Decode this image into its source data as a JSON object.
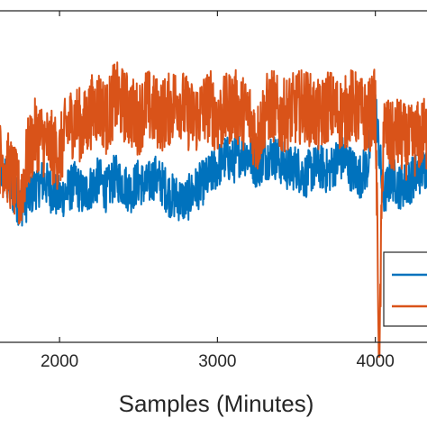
{
  "chart_data": {
    "type": "line",
    "xlabel": "Samples (Minutes)",
    "ylabel": "",
    "xlim": [
      1600,
      4350
    ],
    "ylim": [
      -1.1,
      1.2
    ],
    "xticks": [
      2000,
      3000,
      4000
    ],
    "xtick_labels": [
      "2000",
      "3000",
      "4000"
    ],
    "grid": false,
    "legend_placement": "bottom-right",
    "series": [
      {
        "color": "#0072BD",
        "x": [
          1600,
          1650,
          1700,
          1750,
          1800,
          1850,
          1900,
          1950,
          2000,
          2050,
          2100,
          2150,
          2200,
          2250,
          2300,
          2350,
          2400,
          2450,
          2500,
          2550,
          2600,
          2650,
          2700,
          2750,
          2800,
          2850,
          2900,
          2950,
          3000,
          3050,
          3100,
          3150,
          3200,
          3250,
          3300,
          3350,
          3400,
          3450,
          3500,
          3550,
          3600,
          3650,
          3700,
          3750,
          3800,
          3850,
          3900,
          3950,
          4000,
          4050,
          4100,
          4150,
          4200,
          4250,
          4300,
          4350
        ],
        "values": [
          0.15,
          0.05,
          -0.05,
          -0.15,
          -0.1,
          -0.02,
          0.02,
          -0.05,
          -0.1,
          -0.05,
          0.0,
          -0.08,
          -0.02,
          0.03,
          -0.05,
          0.05,
          0.0,
          -0.05,
          0.02,
          -0.02,
          0.05,
          0.0,
          -0.08,
          -0.1,
          -0.12,
          -0.05,
          0.0,
          0.05,
          0.12,
          0.18,
          0.15,
          0.22,
          0.2,
          0.12,
          0.18,
          0.2,
          0.15,
          0.1,
          0.12,
          0.05,
          0.1,
          0.12,
          0.08,
          0.15,
          0.18,
          0.1,
          0.05,
          0.12,
          0.55,
          -0.1,
          0.05,
          -0.02,
          0.0,
          0.05,
          0.1,
          0.15
        ]
      },
      {
        "color": "#D95319",
        "x": [
          1600,
          1650,
          1700,
          1750,
          1800,
          1850,
          1900,
          1950,
          2000,
          2050,
          2100,
          2150,
          2200,
          2250,
          2300,
          2350,
          2400,
          2450,
          2500,
          2550,
          2600,
          2650,
          2700,
          2750,
          2800,
          2850,
          2900,
          2950,
          3000,
          3050,
          3100,
          3150,
          3200,
          3250,
          3300,
          3350,
          3400,
          3450,
          3500,
          3550,
          3600,
          3650,
          3700,
          3750,
          3800,
          3850,
          3900,
          3950,
          4000,
          4025,
          4050,
          4100,
          4150,
          4200,
          4250,
          4300,
          4350
        ],
        "values": [
          0.2,
          0.15,
          0.05,
          -0.1,
          0.2,
          0.35,
          0.3,
          0.25,
          0.2,
          0.4,
          0.45,
          0.38,
          0.5,
          0.55,
          0.45,
          0.6,
          0.55,
          0.5,
          0.45,
          0.55,
          0.5,
          0.48,
          0.52,
          0.6,
          0.5,
          0.45,
          0.5,
          0.55,
          0.45,
          0.5,
          0.55,
          0.5,
          0.48,
          0.3,
          0.5,
          0.55,
          0.45,
          0.5,
          0.52,
          0.55,
          0.5,
          0.45,
          0.55,
          0.5,
          0.48,
          0.55,
          0.5,
          0.45,
          0.55,
          -1.2,
          0.4,
          0.3,
          0.35,
          0.28,
          0.3,
          0.35,
          0.32
        ]
      }
    ]
  }
}
